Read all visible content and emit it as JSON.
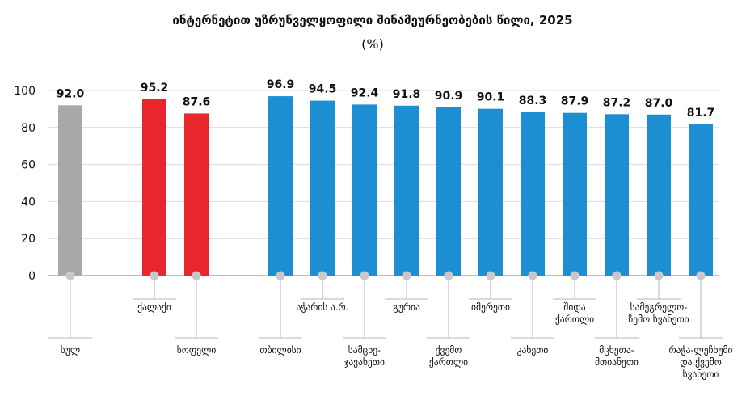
{
  "chart_data": {
    "type": "bar",
    "title": "ინტერნეტით უზრუნველყოფილი შინამეურნეობების წილი, 2025",
    "subtitle": "(%)",
    "ylim": [
      0,
      100
    ],
    "yticks": [
      0,
      20,
      40,
      60,
      80,
      100
    ],
    "grid": true,
    "categories": [
      {
        "label": [
          "სულ"
        ],
        "value": 92.0,
        "value_label": "92.0",
        "color": "#a7a8aa"
      },
      {
        "label": [
          "ქალაქი"
        ],
        "value": 95.2,
        "value_label": "95.2",
        "color": "#e8262b"
      },
      {
        "label": [
          "სოფელი"
        ],
        "value": 87.6,
        "value_label": "87.6",
        "color": "#e8262b"
      },
      {
        "label": [
          "თბილისი"
        ],
        "value": 96.9,
        "value_label": "96.9",
        "color": "#1b8fd2"
      },
      {
        "label": [
          "აჭარის ა.რ."
        ],
        "value": 94.5,
        "value_label": "94.5",
        "color": "#1b8fd2"
      },
      {
        "label": [
          "სამცხე-",
          "ჯავახეთი"
        ],
        "value": 92.4,
        "value_label": "92.4",
        "color": "#1b8fd2"
      },
      {
        "label": [
          "გურია"
        ],
        "value": 91.8,
        "value_label": "91.8",
        "color": "#1b8fd2"
      },
      {
        "label": [
          "ქვემო",
          "ქართლი"
        ],
        "value": 90.9,
        "value_label": "90.9",
        "color": "#1b8fd2"
      },
      {
        "label": [
          "იმერეთი"
        ],
        "value": 90.1,
        "value_label": "90.1",
        "color": "#1b8fd2"
      },
      {
        "label": [
          "კახეთი"
        ],
        "value": 88.3,
        "value_label": "88.3",
        "color": "#1b8fd2"
      },
      {
        "label": [
          "შიდა",
          "ქართლი"
        ],
        "value": 87.9,
        "value_label": "87.9",
        "color": "#1b8fd2"
      },
      {
        "label": [
          "მცხეთა-",
          "მთიანეთი"
        ],
        "value": 87.2,
        "value_label": "87.2",
        "color": "#1b8fd2"
      },
      {
        "label": [
          "სამეგრელო-",
          "ზემო სვანეთი"
        ],
        "value": 87.0,
        "value_label": "87.0",
        "color": "#1b8fd2"
      },
      {
        "label": [
          "რაჭა-ლეჩხუმი",
          "და ქვემო",
          "სვანეთი"
        ],
        "value": 81.7,
        "value_label": "81.7",
        "color": "#1b8fd2"
      }
    ]
  }
}
